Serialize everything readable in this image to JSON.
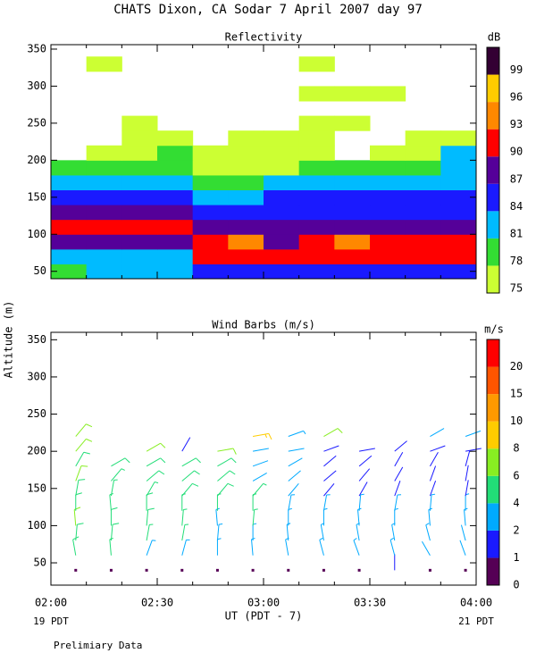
{
  "title": "CHATS Dixon, CA  Sodar    7 April 2007   day  97",
  "ylabel": "Altitude (m)",
  "xlabel": "UT  (PDT - 7)",
  "start_label": "19 PDT",
  "end_label": "21 PDT",
  "footnote": "Prelimiary Data",
  "xlim": [
    0,
    120
  ],
  "xticks": [
    {
      "value": 0,
      "label": "02:00"
    },
    {
      "value": 30,
      "label": "02:30"
    },
    {
      "value": 60,
      "label": "03:00"
    },
    {
      "value": 90,
      "label": "03:30"
    },
    {
      "value": 120,
      "label": "04:00"
    }
  ],
  "xminor": [
    10,
    20,
    40,
    50,
    70,
    80,
    100,
    110
  ],
  "chart_data": [
    {
      "type": "contour",
      "title": "Reflectivity",
      "unit": "dB",
      "ylim": [
        40,
        356
      ],
      "yticks": [
        50,
        100,
        150,
        200,
        250,
        300,
        350
      ],
      "levels": [
        75,
        78,
        81,
        84,
        87,
        90,
        93,
        96,
        99
      ],
      "colors": [
        "#ccff33",
        "#33dd33",
        "#00bbff",
        "#1a1aff",
        "#550099",
        "#ff0000",
        "#ff8800",
        "#ffcc00",
        "#330033"
      ],
      "x": [
        5,
        15,
        25,
        35,
        45,
        55,
        65,
        75,
        85,
        95,
        105,
        115
      ],
      "altitudes": [
        50,
        70,
        90,
        110,
        130,
        150,
        170,
        190,
        210,
        230,
        250,
        290,
        330
      ],
      "values": [
        [
          78,
          81,
          81,
          81,
          84,
          84,
          84,
          84,
          84,
          84,
          84,
          84
        ],
        [
          81,
          81,
          81,
          81,
          90,
          90,
          90,
          90,
          90,
          90,
          90,
          90
        ],
        [
          87,
          87,
          87,
          87,
          90,
          93,
          87,
          90,
          93,
          90,
          90,
          90
        ],
        [
          90,
          90,
          90,
          90,
          87,
          87,
          87,
          87,
          87,
          87,
          87,
          87
        ],
        [
          87,
          87,
          87,
          87,
          84,
          84,
          84,
          84,
          84,
          84,
          84,
          84
        ],
        [
          84,
          84,
          84,
          84,
          81,
          81,
          84,
          84,
          84,
          84,
          84,
          84
        ],
        [
          81,
          81,
          81,
          81,
          78,
          78,
          81,
          81,
          81,
          81,
          81,
          81
        ],
        [
          78,
          78,
          78,
          78,
          75,
          75,
          75,
          78,
          78,
          78,
          78,
          81
        ],
        [
          null,
          75,
          75,
          78,
          75,
          75,
          75,
          75,
          null,
          75,
          75,
          81
        ],
        [
          null,
          null,
          75,
          75,
          null,
          75,
          75,
          75,
          null,
          null,
          75,
          75
        ],
        [
          null,
          null,
          75,
          null,
          null,
          null,
          null,
          75,
          75,
          null,
          null,
          null
        ],
        [
          null,
          null,
          null,
          null,
          null,
          null,
          null,
          75,
          75,
          75,
          null,
          null
        ],
        [
          null,
          75,
          null,
          null,
          null,
          null,
          null,
          75,
          null,
          null,
          null,
          null
        ]
      ]
    },
    {
      "type": "barbs",
      "title": "Wind Barbs (m/s)",
      "unit": "m/s",
      "ylim": [
        20,
        360
      ],
      "yticks": [
        50,
        100,
        150,
        200,
        250,
        300,
        350
      ],
      "levels": [
        0,
        1,
        2,
        4,
        6,
        8,
        10,
        15,
        20
      ],
      "colors": [
        "#550055",
        "#1a1aff",
        "#00aaff",
        "#22dd77",
        "#88ee22",
        "#ffcc00",
        "#ff9900",
        "#ff5500",
        "#ff0000"
      ],
      "altitudes": [
        40,
        60,
        80,
        100,
        120,
        140,
        160,
        180,
        200,
        220
      ],
      "series": [
        {
          "x": 7,
          "values": [
            0.5,
            5,
            5,
            6,
            5,
            5,
            6,
            5,
            6,
            6
          ],
          "directions": [
            0,
            350,
            5,
            355,
            0,
            10,
            20,
            30,
            40,
            40
          ]
        },
        {
          "x": 17,
          "values": [
            0.5,
            4,
            5,
            5,
            4,
            4,
            4,
            5,
            null,
            null
          ],
          "directions": [
            0,
            355,
            5,
            0,
            355,
            10,
            40,
            60,
            null,
            null
          ]
        },
        {
          "x": 27,
          "values": [
            0.5,
            3,
            4,
            5,
            5,
            4,
            5,
            5,
            6,
            null
          ],
          "directions": [
            0,
            20,
            10,
            5,
            0,
            30,
            50,
            60,
            60,
            null
          ]
        },
        {
          "x": 37,
          "values": [
            0.5,
            3,
            4,
            4,
            4,
            5,
            5,
            5,
            1.5,
            null
          ],
          "directions": [
            0,
            15,
            10,
            5,
            0,
            40,
            50,
            60,
            30,
            null
          ]
        },
        {
          "x": 47,
          "values": [
            0.5,
            3,
            3,
            3,
            4,
            5,
            5,
            5,
            6,
            null
          ],
          "directions": [
            0,
            0,
            5,
            355,
            0,
            40,
            50,
            60,
            80,
            null
          ]
        },
        {
          "x": 57,
          "values": [
            0.5,
            3,
            3,
            4,
            4,
            4,
            2,
            2,
            2,
            8
          ],
          "directions": [
            0,
            355,
            0,
            5,
            0,
            40,
            60,
            70,
            80,
            80
          ]
        },
        {
          "x": 67,
          "values": [
            0.5,
            3,
            3,
            3,
            3,
            2,
            2,
            2,
            2,
            3
          ],
          "directions": [
            0,
            350,
            355,
            0,
            10,
            40,
            50,
            60,
            80,
            70
          ]
        },
        {
          "x": 77,
          "values": [
            0.5,
            3,
            3,
            3,
            3,
            1.5,
            1.5,
            1.5,
            1.5,
            6
          ],
          "directions": [
            0,
            345,
            350,
            0,
            10,
            40,
            50,
            50,
            70,
            60
          ]
        },
        {
          "x": 87,
          "values": [
            0.5,
            3,
            3,
            3,
            3,
            1.5,
            1.5,
            1.5,
            1.5,
            null
          ],
          "directions": [
            0,
            340,
            350,
            355,
            5,
            30,
            40,
            50,
            80,
            null
          ]
        },
        {
          "x": 97,
          "values": [
            1,
            3,
            3,
            3,
            3,
            1.5,
            1.5,
            1.5,
            1.5,
            null
          ],
          "directions": [
            0,
            345,
            350,
            0,
            10,
            20,
            30,
            30,
            50,
            null
          ]
        },
        {
          "x": 107,
          "values": [
            0.5,
            2,
            3,
            3,
            3,
            1.5,
            1.5,
            1.5,
            1.5,
            2
          ],
          "directions": [
            0,
            330,
            345,
            355,
            5,
            20,
            20,
            30,
            70,
            60
          ]
        },
        {
          "x": 117,
          "values": [
            0.5,
            2,
            2,
            3,
            3,
            1.5,
            1.5,
            1.5,
            1.5,
            2
          ],
          "directions": [
            0,
            340,
            345,
            355,
            0,
            10,
            10,
            15,
            80,
            70
          ]
        }
      ]
    }
  ]
}
